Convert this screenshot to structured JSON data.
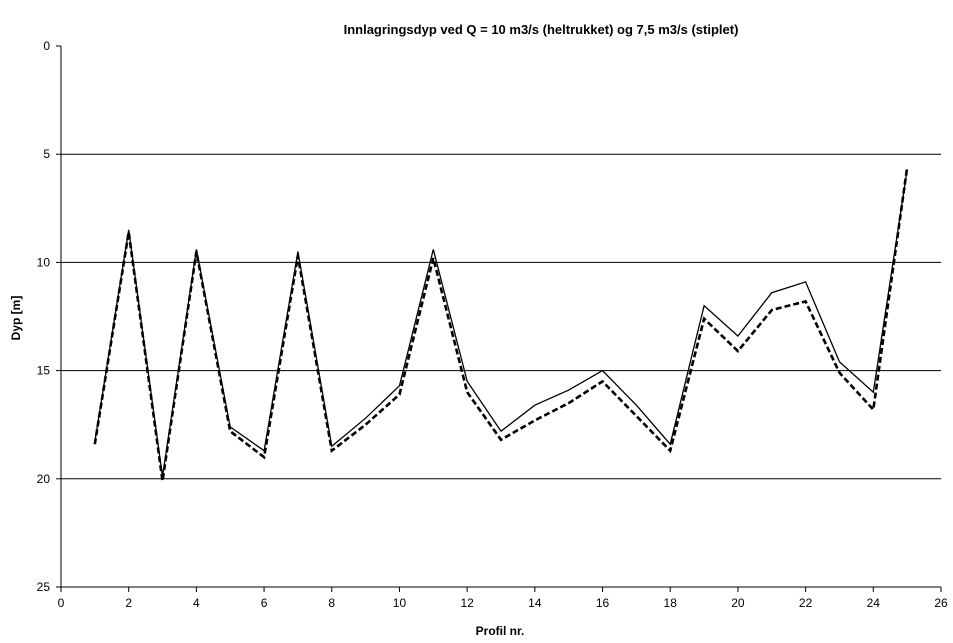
{
  "chart_data": {
    "type": "line",
    "title": "Innlagringsdyp ved Q = 10 m3/s (heltrukket) og 7,5 m3/s (stiplet)",
    "xlabel": "Profil nr.",
    "ylabel": "Dyp [m]",
    "xlim": [
      0,
      26
    ],
    "ylim": [
      0,
      25
    ],
    "y_inverted": true,
    "xticks": [
      0,
      2,
      4,
      6,
      8,
      10,
      12,
      14,
      16,
      18,
      20,
      22,
      24,
      26
    ],
    "yticks": [
      0,
      5,
      10,
      15,
      20,
      25
    ],
    "grid": "horizontal",
    "legend": "none",
    "x": [
      1,
      2,
      3,
      4,
      5,
      6,
      7,
      8,
      9,
      10,
      11,
      12,
      13,
      14,
      15,
      16,
      17,
      18,
      19,
      20,
      21,
      22,
      23,
      24,
      25
    ],
    "series": [
      {
        "style": "solid",
        "values": [
          18.3,
          8.5,
          19.9,
          9.4,
          17.6,
          18.7,
          9.5,
          18.5,
          17.2,
          15.7,
          9.4,
          15.5,
          17.8,
          16.6,
          15.9,
          15.0,
          16.6,
          18.4,
          12.0,
          13.4,
          11.4,
          10.9,
          14.6,
          16.0,
          5.7
        ]
      },
      {
        "style": "dashed",
        "values": [
          18.4,
          8.6,
          20.1,
          9.5,
          17.8,
          19.0,
          9.7,
          18.7,
          17.5,
          16.1,
          9.8,
          16.0,
          18.2,
          17.3,
          16.5,
          15.5,
          17.1,
          18.7,
          12.6,
          14.1,
          12.2,
          11.8,
          15.1,
          16.8,
          5.6
        ]
      }
    ],
    "colors": {
      "line": "#000000",
      "grid": "#000000",
      "background": "#ffffff"
    }
  }
}
